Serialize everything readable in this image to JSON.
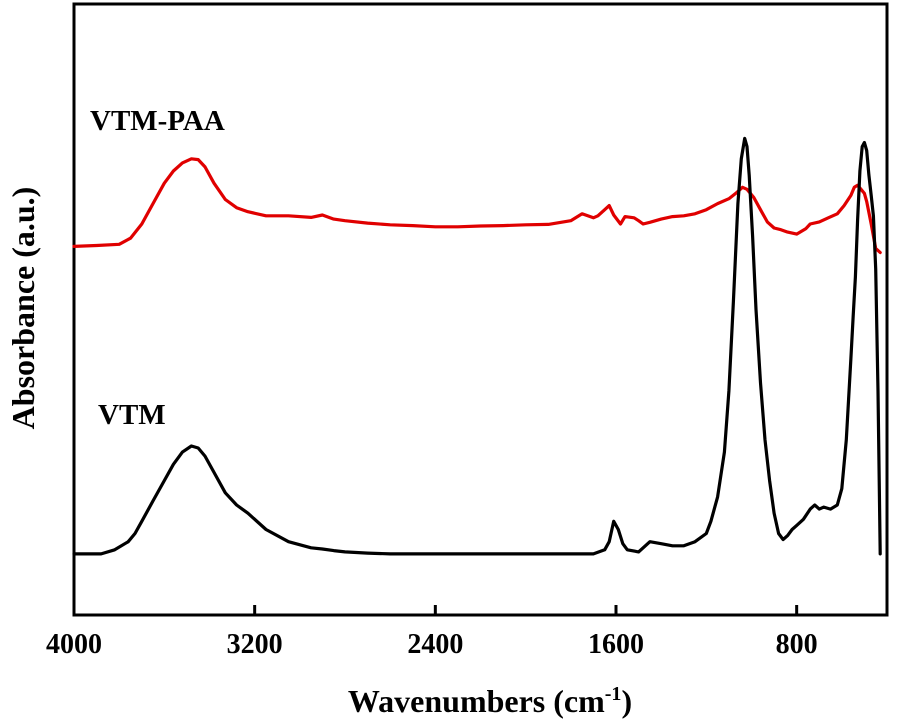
{
  "chart_data": {
    "type": "line",
    "title": "",
    "xlabel": "Wavenumbers (cm",
    "xlabel_sup": "-1",
    "xlabel_close": ")",
    "ylabel": "Absorbance (a.u.)",
    "xlim": [
      4000,
      400
    ],
    "x_reversed": true,
    "ylim": [
      -0.15,
      1.35
    ],
    "x_ticks": [
      4000,
      3200,
      2400,
      1600,
      800
    ],
    "x_tick_labels": [
      "4000",
      "3200",
      "2400",
      "1600",
      "800"
    ],
    "grid": false,
    "legend": "inline labels",
    "series": [
      {
        "name": "VTM-PAA",
        "color": "#e00000",
        "x": [
          4000,
          3900,
          3800,
          3750,
          3700,
          3650,
          3600,
          3560,
          3520,
          3480,
          3450,
          3420,
          3380,
          3330,
          3280,
          3230,
          3150,
          3050,
          2950,
          2900,
          2850,
          2800,
          2700,
          2600,
          2500,
          2400,
          2300,
          2200,
          2100,
          2000,
          1900,
          1800,
          1750,
          1700,
          1680,
          1650,
          1630,
          1610,
          1580,
          1560,
          1520,
          1500,
          1480,
          1450,
          1400,
          1350,
          1300,
          1250,
          1200,
          1150,
          1100,
          1070,
          1040,
          1020,
          990,
          960,
          930,
          900,
          870,
          840,
          800,
          760,
          740,
          700,
          660,
          620,
          590,
          560,
          545,
          530,
          515,
          500,
          490,
          470,
          450,
          430
        ],
        "y": [
          0.755,
          0.757,
          0.76,
          0.775,
          0.81,
          0.86,
          0.91,
          0.94,
          0.96,
          0.97,
          0.968,
          0.95,
          0.91,
          0.87,
          0.85,
          0.84,
          0.83,
          0.83,
          0.826,
          0.832,
          0.822,
          0.818,
          0.812,
          0.808,
          0.806,
          0.803,
          0.803,
          0.805,
          0.806,
          0.808,
          0.809,
          0.818,
          0.835,
          0.825,
          0.83,
          0.845,
          0.855,
          0.832,
          0.81,
          0.828,
          0.825,
          0.818,
          0.81,
          0.814,
          0.822,
          0.828,
          0.83,
          0.835,
          0.845,
          0.86,
          0.872,
          0.885,
          0.9,
          0.895,
          0.875,
          0.845,
          0.815,
          0.8,
          0.796,
          0.79,
          0.785,
          0.798,
          0.81,
          0.815,
          0.825,
          0.835,
          0.855,
          0.88,
          0.9,
          0.905,
          0.895,
          0.885,
          0.865,
          0.81,
          0.75,
          0.74
        ]
      },
      {
        "name": "VTM",
        "color": "#000000",
        "x": [
          4000,
          3880,
          3820,
          3760,
          3730,
          3700,
          3650,
          3600,
          3560,
          3520,
          3480,
          3450,
          3420,
          3380,
          3330,
          3280,
          3230,
          3150,
          3050,
          2950,
          2900,
          2850,
          2800,
          2700,
          2600,
          2500,
          2400,
          2300,
          2200,
          2100,
          2000,
          1900,
          1800,
          1700,
          1650,
          1630,
          1610,
          1590,
          1570,
          1550,
          1500,
          1450,
          1400,
          1350,
          1300,
          1250,
          1200,
          1180,
          1150,
          1120,
          1100,
          1080,
          1060,
          1045,
          1030,
          1020,
          1010,
          995,
          980,
          960,
          940,
          920,
          900,
          880,
          860,
          840,
          820,
          800,
          770,
          740,
          720,
          700,
          680,
          650,
          620,
          600,
          580,
          570,
          560,
          550,
          540,
          530,
          520,
          510,
          500,
          490,
          480,
          470,
          460,
          450,
          440,
          430
        ],
        "y": [
          0.0,
          0.0,
          0.01,
          0.03,
          0.05,
          0.08,
          0.13,
          0.18,
          0.22,
          0.25,
          0.265,
          0.26,
          0.24,
          0.2,
          0.15,
          0.12,
          0.1,
          0.06,
          0.03,
          0.015,
          0.012,
          0.008,
          0.005,
          0.002,
          0.0,
          0.0,
          0.0,
          0.0,
          0.0,
          0.0,
          0.0,
          0.0,
          0.0,
          0.0,
          0.01,
          0.03,
          0.08,
          0.06,
          0.025,
          0.01,
          0.005,
          0.03,
          0.025,
          0.02,
          0.02,
          0.03,
          0.05,
          0.08,
          0.14,
          0.25,
          0.4,
          0.62,
          0.86,
          0.97,
          1.02,
          1.0,
          0.93,
          0.78,
          0.6,
          0.42,
          0.28,
          0.18,
          0.1,
          0.05,
          0.035,
          0.045,
          0.06,
          0.07,
          0.085,
          0.11,
          0.12,
          0.11,
          0.115,
          0.11,
          0.12,
          0.16,
          0.28,
          0.38,
          0.48,
          0.58,
          0.68,
          0.82,
          0.94,
          1.0,
          1.01,
          0.99,
          0.93,
          0.88,
          0.83,
          0.7,
          0.4,
          0.0
        ]
      }
    ]
  }
}
